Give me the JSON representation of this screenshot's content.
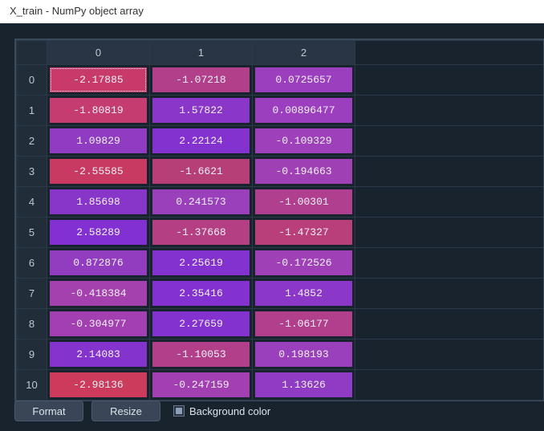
{
  "window": {
    "title": "X_train - NumPy object array"
  },
  "table": {
    "column_headers": [
      "0",
      "1",
      "2"
    ],
    "row_headers": [
      "0",
      "1",
      "2",
      "3",
      "4",
      "5",
      "6",
      "7",
      "8",
      "9",
      "10"
    ],
    "selected": {
      "row": 0,
      "col": 0
    },
    "rows": [
      [
        {
          "v": "-2.17885",
          "bg": "#c73a6a"
        },
        {
          "v": "-1.07218",
          "bg": "#b23f8a"
        },
        {
          "v": "0.0725657",
          "bg": "#9b3fbf"
        }
      ],
      [
        {
          "v": "-1.80819",
          "bg": "#c53c70"
        },
        {
          "v": "1.57822",
          "bg": "#8a36c8"
        },
        {
          "v": "0.00896477",
          "bg": "#9b3fbf"
        }
      ],
      [
        {
          "v": "1.09829",
          "bg": "#8f3bc2"
        },
        {
          "v": "2.22124",
          "bg": "#8432cf"
        },
        {
          "v": "-0.109329",
          "bg": "#9d40ba"
        }
      ],
      [
        {
          "v": "-2.55585",
          "bg": "#c93a62"
        },
        {
          "v": "-1.6621",
          "bg": "#b73f78"
        },
        {
          "v": "-0.194663",
          "bg": "#a040b5"
        }
      ],
      [
        {
          "v": "1.85698",
          "bg": "#8835ca"
        },
        {
          "v": "0.241573",
          "bg": "#9a40bb"
        },
        {
          "v": "-1.00301",
          "bg": "#b03f8f"
        }
      ],
      [
        {
          "v": "2.58289",
          "bg": "#8230d2"
        },
        {
          "v": "-1.37668",
          "bg": "#b43f82"
        },
        {
          "v": "-1.47327",
          "bg": "#b83f7a"
        }
      ],
      [
        {
          "v": "0.872876",
          "bg": "#923dbf"
        },
        {
          "v": "2.25619",
          "bg": "#8432cf"
        },
        {
          "v": "-0.172526",
          "bg": "#9f40b7"
        }
      ],
      [
        {
          "v": "-0.418384",
          "bg": "#a541ae"
        },
        {
          "v": "2.35416",
          "bg": "#8331d0"
        },
        {
          "v": "1.4852",
          "bg": "#8b37c7"
        }
      ],
      [
        {
          "v": "-0.304977",
          "bg": "#a340b1"
        },
        {
          "v": "2.27659",
          "bg": "#8432cf"
        },
        {
          "v": "-1.06177",
          "bg": "#b13f8c"
        }
      ],
      [
        {
          "v": "2.14083",
          "bg": "#8533cd"
        },
        {
          "v": "-1.10053",
          "bg": "#b23f89"
        },
        {
          "v": "0.198193",
          "bg": "#9a40bc"
        }
      ],
      [
        {
          "v": "-2.98136",
          "bg": "#cc3a5c"
        },
        {
          "v": "-0.247159",
          "bg": "#a240b2"
        },
        {
          "v": "1.13626",
          "bg": "#8f3bc3"
        }
      ]
    ]
  },
  "toolbar": {
    "format_label": "Format",
    "resize_label": "Resize",
    "bgcolor_label": "Background color",
    "bgcolor_checked": true
  }
}
